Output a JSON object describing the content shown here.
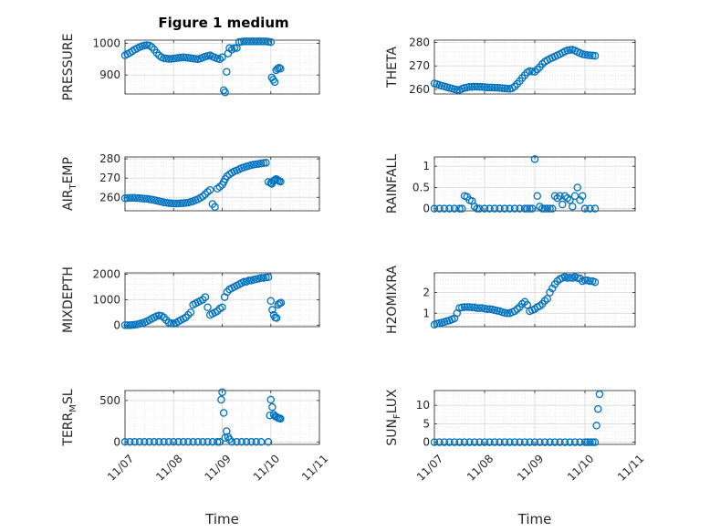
{
  "figure_title": "Figure 1 medium",
  "marker_color": "#0072BD",
  "chart_data": [
    {
      "type": "scatter",
      "id": "pressure",
      "title": "Figure 1 medium",
      "ylabel": "PRESSURE",
      "xlabel": "",
      "xlim": [
        0,
        4
      ],
      "ylim": [
        840,
        1010
      ],
      "yticks": [
        900,
        1000
      ],
      "ytick_labels": [
        "900",
        "1000"
      ],
      "xticks": [
        0,
        1,
        2,
        3,
        4
      ],
      "xtick_labels": [],
      "x": [
        0.0,
        0.05,
        0.1,
        0.15,
        0.2,
        0.25,
        0.3,
        0.35,
        0.4,
        0.45,
        0.5,
        0.55,
        0.6,
        0.65,
        0.7,
        0.75,
        0.8,
        0.85,
        0.9,
        0.95,
        1.0,
        1.05,
        1.1,
        1.15,
        1.2,
        1.25,
        1.3,
        1.35,
        1.4,
        1.45,
        1.5,
        1.55,
        1.6,
        1.65,
        1.7,
        1.75,
        1.8,
        1.85,
        1.9,
        1.95,
        2.0,
        2.03,
        2.06,
        2.09,
        2.12,
        2.15,
        2.2,
        2.25,
        2.3,
        2.35,
        2.4,
        2.45,
        2.5,
        2.55,
        2.6,
        2.65,
        2.7,
        2.75,
        2.8,
        2.85,
        2.9,
        2.95,
        3.0,
        3.02,
        3.05,
        3.08,
        3.11,
        3.14,
        3.17,
        3.2
      ],
      "y": [
        962,
        966,
        970,
        975,
        980,
        984,
        988,
        991,
        993,
        994,
        993,
        988,
        980,
        970,
        962,
        956,
        953,
        952,
        951,
        951,
        952,
        953,
        954,
        955,
        956,
        955,
        954,
        953,
        952,
        951,
        950,
        952,
        955,
        958,
        960,
        962,
        958,
        955,
        952,
        950,
        956,
        852,
        845,
        910,
        968,
        985,
        980,
        985,
        985,
        1004,
        1005,
        1006,
        1006,
        1006,
        1006,
        1006,
        1006,
        1006,
        1006,
        1006,
        1006,
        1005,
        1004,
        892,
        885,
        878,
        915,
        920,
        923,
        920
      ]
    },
    {
      "type": "scatter",
      "id": "theta",
      "title": "",
      "ylabel": "THETA",
      "xlabel": "",
      "xlim": [
        0,
        4
      ],
      "ylim": [
        258,
        281
      ],
      "yticks": [
        260,
        270,
        280
      ],
      "ytick_labels": [
        "260",
        "270",
        "280"
      ],
      "xticks": [
        0,
        1,
        2,
        3,
        4
      ],
      "xtick_labels": [],
      "x": [
        0.0,
        0.05,
        0.1,
        0.15,
        0.2,
        0.25,
        0.3,
        0.35,
        0.4,
        0.45,
        0.5,
        0.55,
        0.6,
        0.65,
        0.7,
        0.75,
        0.8,
        0.85,
        0.9,
        0.95,
        1.0,
        1.05,
        1.1,
        1.15,
        1.2,
        1.25,
        1.3,
        1.35,
        1.4,
        1.45,
        1.5,
        1.55,
        1.6,
        1.65,
        1.7,
        1.75,
        1.8,
        1.85,
        1.9,
        1.95,
        2.0,
        2.05,
        2.1,
        2.15,
        2.2,
        2.25,
        2.3,
        2.35,
        2.4,
        2.45,
        2.5,
        2.55,
        2.6,
        2.65,
        2.7,
        2.75,
        2.8,
        2.85,
        2.9,
        2.95,
        3.0,
        3.05,
        3.1,
        3.15,
        3.2
      ],
      "y": [
        262.5,
        262.2,
        261.8,
        261.5,
        261.2,
        260.9,
        260.6,
        260.3,
        260.0,
        259.8,
        259.7,
        260.2,
        260.6,
        260.8,
        261.0,
        261.0,
        261.1,
        261.1,
        261.0,
        261.0,
        260.9,
        260.8,
        260.8,
        260.8,
        260.7,
        260.7,
        260.6,
        260.5,
        260.4,
        260.3,
        260.2,
        260.5,
        261.2,
        262.3,
        263.5,
        264.8,
        266.0,
        267.2,
        267.8,
        267.6,
        267.5,
        268.5,
        269.5,
        270.8,
        271.8,
        272.4,
        273.0,
        273.5,
        274.0,
        274.5,
        275.0,
        275.6,
        276.2,
        276.6,
        276.8,
        276.9,
        276.5,
        276.0,
        275.5,
        275.0,
        274.8,
        274.6,
        274.5,
        274.4,
        274.3
      ]
    },
    {
      "type": "scatter",
      "id": "air_temp",
      "title": "",
      "ylabel": "AIR_TEMP",
      "ylabel_main": "AIR",
      "ylabel_sub": "T",
      "ylabel_rest": "EMP",
      "xlabel": "",
      "xlim": [
        0,
        4
      ],
      "ylim": [
        253,
        281
      ],
      "yticks": [
        260,
        270,
        280
      ],
      "ytick_labels": [
        "260",
        "270",
        "280"
      ],
      "xticks": [
        0,
        1,
        2,
        3,
        4
      ],
      "xtick_labels": [],
      "x": [
        0.0,
        0.05,
        0.1,
        0.15,
        0.2,
        0.25,
        0.3,
        0.35,
        0.4,
        0.45,
        0.5,
        0.55,
        0.6,
        0.65,
        0.7,
        0.75,
        0.8,
        0.85,
        0.9,
        0.95,
        1.0,
        1.05,
        1.1,
        1.15,
        1.2,
        1.25,
        1.3,
        1.35,
        1.4,
        1.45,
        1.5,
        1.55,
        1.6,
        1.65,
        1.7,
        1.75,
        1.8,
        1.85,
        1.9,
        1.95,
        2.0,
        2.03,
        2.06,
        2.1,
        2.15,
        2.2,
        2.25,
        2.3,
        2.35,
        2.4,
        2.45,
        2.5,
        2.55,
        2.6,
        2.65,
        2.7,
        2.75,
        2.8,
        2.85,
        2.9,
        2.95,
        3.0,
        3.02,
        3.05,
        3.08,
        3.11,
        3.14,
        3.17,
        3.2
      ],
      "y": [
        259.5,
        259.6,
        259.7,
        259.7,
        259.7,
        259.6,
        259.5,
        259.4,
        259.3,
        259.2,
        259.0,
        258.8,
        258.6,
        258.3,
        258.0,
        257.7,
        257.4,
        257.2,
        257.0,
        256.9,
        256.8,
        256.8,
        256.8,
        256.9,
        257.0,
        257.1,
        257.3,
        257.6,
        258.0,
        258.5,
        259.0,
        259.7,
        260.5,
        261.6,
        262.8,
        263.8,
        256.5,
        255.0,
        264.5,
        265.5,
        266.5,
        268.0,
        269.5,
        271.0,
        272.0,
        272.8,
        273.5,
        274.0,
        274.6,
        275.2,
        275.6,
        276.0,
        276.4,
        276.8,
        277.0,
        277.2,
        277.4,
        277.6,
        277.8,
        278.0,
        268.0,
        267.5,
        267.0,
        268.5,
        269.0,
        269.5,
        269.0,
        268.5,
        268.2
      ]
    },
    {
      "type": "scatter",
      "id": "rainfall",
      "title": "",
      "ylabel": "RAINFALL",
      "xlabel": "",
      "xlim": [
        0,
        4
      ],
      "ylim": [
        -0.05,
        1.22
      ],
      "yticks": [
        0,
        0.5,
        1
      ],
      "ytick_labels": [
        "0",
        "0.5",
        "1"
      ],
      "xticks": [
        0,
        1,
        2,
        3,
        4
      ],
      "xtick_labels": [],
      "x": [
        0.0,
        0.1,
        0.2,
        0.3,
        0.4,
        0.5,
        0.55,
        0.6,
        0.65,
        0.7,
        0.75,
        0.8,
        0.85,
        0.9,
        1.0,
        1.1,
        1.2,
        1.3,
        1.4,
        1.5,
        1.6,
        1.7,
        1.8,
        1.85,
        1.9,
        1.95,
        2.0,
        2.05,
        2.1,
        2.15,
        2.2,
        2.25,
        2.3,
        2.35,
        2.4,
        2.45,
        2.5,
        2.55,
        2.6,
        2.65,
        2.7,
        2.75,
        2.8,
        2.85,
        2.9,
        2.95,
        3.0,
        3.1,
        3.2
      ],
      "y": [
        0,
        0,
        0,
        0,
        0,
        0,
        0,
        0.3,
        0.28,
        0.2,
        0.18,
        0.05,
        0,
        0,
        0,
        0,
        0,
        0,
        0,
        0,
        0,
        0,
        0,
        0,
        0,
        0,
        1.17,
        0.3,
        0.05,
        0,
        0,
        0,
        0,
        0,
        0.3,
        0.25,
        0.3,
        0.1,
        0.3,
        0.25,
        0.2,
        0.05,
        0.3,
        0.5,
        0.2,
        0.3,
        0,
        0,
        0
      ]
    },
    {
      "type": "scatter",
      "id": "mixdepth",
      "title": "",
      "ylabel": "MIXDEPTH",
      "xlabel": "",
      "xlim": [
        0,
        4
      ],
      "ylim": [
        -60,
        2050
      ],
      "yticks": [
        0,
        1000,
        2000
      ],
      "ytick_labels": [
        "0",
        "1000",
        "2000"
      ],
      "xticks": [
        0,
        1,
        2,
        3,
        4
      ],
      "xtick_labels": [],
      "x": [
        0.0,
        0.05,
        0.1,
        0.15,
        0.2,
        0.25,
        0.3,
        0.35,
        0.4,
        0.45,
        0.5,
        0.55,
        0.6,
        0.65,
        0.7,
        0.75,
        0.8,
        0.85,
        0.9,
        0.95,
        1.0,
        1.05,
        1.1,
        1.15,
        1.2,
        1.25,
        1.3,
        1.35,
        1.4,
        1.45,
        1.5,
        1.55,
        1.6,
        1.65,
        1.7,
        1.75,
        1.8,
        1.85,
        1.9,
        1.95,
        2.0,
        2.05,
        2.1,
        2.15,
        2.2,
        2.25,
        2.3,
        2.35,
        2.4,
        2.45,
        2.5,
        2.55,
        2.6,
        2.65,
        2.7,
        2.75,
        2.8,
        2.85,
        2.9,
        2.95,
        3.0,
        3.03,
        3.06,
        3.09,
        3.12,
        3.15,
        3.18,
        3.21
      ],
      "y": [
        0,
        0,
        0,
        5,
        15,
        30,
        50,
        80,
        110,
        150,
        200,
        250,
        300,
        350,
        380,
        360,
        300,
        200,
        100,
        80,
        60,
        90,
        150,
        200,
        250,
        300,
        400,
        500,
        800,
        850,
        900,
        950,
        1000,
        1100,
        700,
        400,
        450,
        500,
        550,
        650,
        700,
        1100,
        1300,
        1400,
        1450,
        1500,
        1550,
        1600,
        1650,
        1700,
        1700,
        1750,
        1750,
        1780,
        1800,
        1820,
        1850,
        1850,
        1870,
        1880,
        950,
        600,
        400,
        300,
        280,
        800,
        850,
        880
      ]
    },
    {
      "type": "scatter",
      "id": "h2omixra",
      "title": "",
      "ylabel": "H2OMIXRA",
      "xlabel": "",
      "xlim": [
        0,
        4
      ],
      "ylim": [
        0.35,
        2.95
      ],
      "yticks": [
        1,
        2
      ],
      "ytick_labels": [
        "1",
        "2"
      ],
      "xticks": [
        0,
        1,
        2,
        3,
        4
      ],
      "xtick_labels": [],
      "x": [
        0.0,
        0.05,
        0.1,
        0.15,
        0.2,
        0.25,
        0.3,
        0.35,
        0.4,
        0.45,
        0.5,
        0.55,
        0.6,
        0.65,
        0.7,
        0.75,
        0.8,
        0.85,
        0.9,
        0.95,
        1.0,
        1.05,
        1.1,
        1.15,
        1.2,
        1.25,
        1.3,
        1.35,
        1.4,
        1.45,
        1.5,
        1.55,
        1.6,
        1.65,
        1.7,
        1.75,
        1.8,
        1.85,
        1.9,
        1.95,
        2.0,
        2.05,
        2.1,
        2.15,
        2.2,
        2.25,
        2.3,
        2.35,
        2.4,
        2.45,
        2.5,
        2.55,
        2.6,
        2.65,
        2.7,
        2.75,
        2.8,
        2.85,
        2.9,
        2.95,
        3.0,
        3.05,
        3.1,
        3.15,
        3.2
      ],
      "y": [
        0.45,
        0.5,
        0.52,
        0.55,
        0.58,
        0.62,
        0.65,
        0.7,
        0.75,
        1.0,
        1.25,
        1.28,
        1.3,
        1.3,
        1.3,
        1.28,
        1.28,
        1.25,
        1.25,
        1.25,
        1.22,
        1.2,
        1.2,
        1.18,
        1.15,
        1.12,
        1.1,
        1.05,
        1.02,
        1.0,
        1.0,
        1.05,
        1.1,
        1.2,
        1.3,
        1.45,
        1.55,
        1.4,
        1.1,
        1.15,
        1.2,
        1.3,
        1.35,
        1.45,
        1.6,
        1.7,
        2.0,
        2.2,
        2.4,
        2.55,
        2.65,
        2.7,
        2.75,
        2.7,
        2.72,
        2.7,
        2.75,
        2.7,
        2.68,
        2.55,
        2.6,
        2.58,
        2.55,
        2.55,
        2.5
      ]
    },
    {
      "type": "scatter",
      "id": "terr_msl",
      "title": "",
      "ylabel": "TERR_MSL",
      "ylabel_main": "TERR",
      "ylabel_sub": "M",
      "ylabel_rest": "SL",
      "xlabel": "Time",
      "xlim": [
        0,
        4
      ],
      "ylim": [
        -30,
        620
      ],
      "yticks": [
        0,
        500
      ],
      "ytick_labels": [
        "0",
        "500"
      ],
      "xticks": [
        0,
        1,
        2,
        3,
        4
      ],
      "xtick_labels": [
        "11/07",
        "11/08",
        "11/09",
        "11/10",
        "11/11"
      ],
      "x": [
        0.0,
        0.1,
        0.2,
        0.3,
        0.4,
        0.5,
        0.6,
        0.7,
        0.8,
        0.9,
        1.0,
        1.1,
        1.2,
        1.3,
        1.4,
        1.5,
        1.6,
        1.7,
        1.8,
        1.9,
        1.95,
        1.98,
        2.0,
        2.03,
        2.06,
        2.09,
        2.12,
        2.15,
        2.2,
        2.3,
        2.4,
        2.5,
        2.6,
        2.7,
        2.8,
        2.95,
        2.98,
        3.0,
        3.03,
        3.06,
        3.09,
        3.12,
        3.15,
        3.18,
        3.2
      ],
      "y": [
        0,
        0,
        0,
        0,
        0,
        0,
        0,
        0,
        0,
        0,
        0,
        0,
        0,
        0,
        0,
        0,
        0,
        0,
        0,
        0,
        0,
        510,
        600,
        350,
        50,
        130,
        60,
        30,
        0,
        0,
        0,
        0,
        0,
        0,
        0,
        0,
        320,
        510,
        420,
        330,
        310,
        300,
        290,
        285,
        280
      ]
    },
    {
      "type": "scatter",
      "id": "sun_flux",
      "title": "",
      "ylabel": "SUN_FLUX",
      "ylabel_main": "SUN",
      "ylabel_sub": "F",
      "ylabel_rest": "LUX",
      "xlabel": "Time",
      "xlim": [
        0,
        4
      ],
      "ylim": [
        -0.6,
        14
      ],
      "yticks": [
        0,
        5,
        10
      ],
      "ytick_labels": [
        "0",
        "5",
        "10"
      ],
      "xticks": [
        0,
        1,
        2,
        3,
        4
      ],
      "xtick_labels": [
        "11/07",
        "11/08",
        "11/09",
        "11/10",
        "11/11"
      ],
      "x": [
        0.0,
        0.1,
        0.2,
        0.3,
        0.4,
        0.5,
        0.6,
        0.7,
        0.8,
        0.9,
        1.0,
        1.1,
        1.2,
        1.3,
        1.4,
        1.5,
        1.6,
        1.7,
        1.8,
        1.9,
        2.0,
        2.1,
        2.2,
        2.3,
        2.4,
        2.5,
        2.6,
        2.7,
        2.8,
        2.9,
        3.0,
        3.05,
        3.1,
        3.15,
        3.2,
        3.23,
        3.26,
        3.29
      ],
      "y": [
        0,
        0,
        0,
        0,
        0,
        0,
        0,
        0,
        0,
        0,
        0,
        0,
        0,
        0,
        0,
        0,
        0,
        0,
        0,
        0,
        0,
        0,
        0,
        0,
        0,
        0,
        0,
        0,
        0,
        0,
        0,
        0,
        0,
        0,
        0,
        4.5,
        9,
        13
      ]
    }
  ]
}
